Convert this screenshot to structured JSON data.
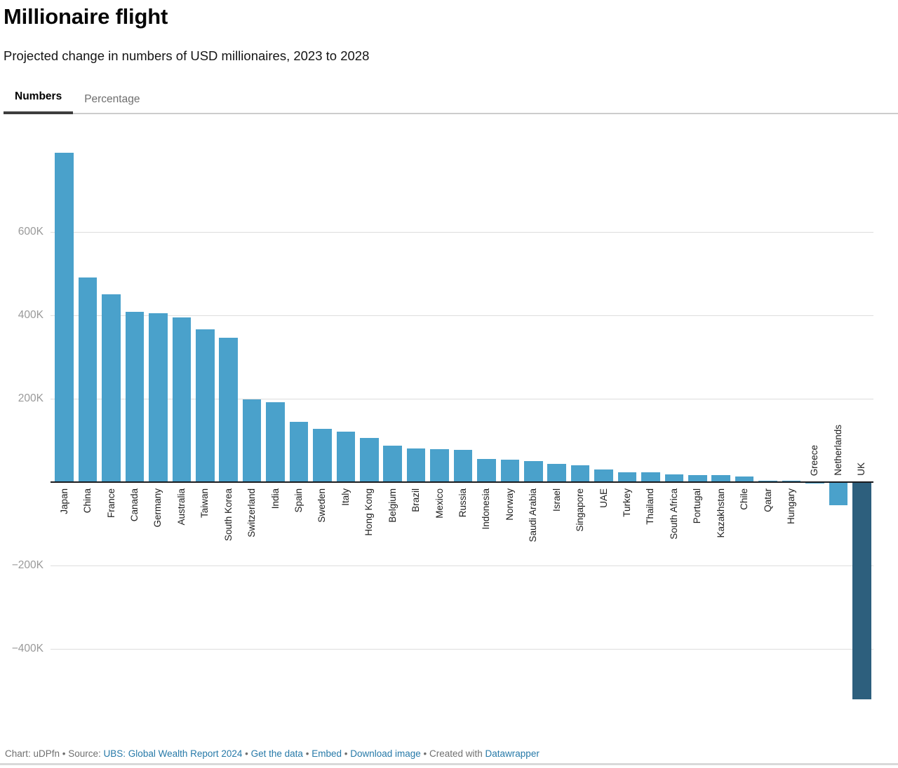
{
  "header": {
    "title": "Millionaire flight",
    "subtitle": "Projected change in numbers of USD millionaires, 2023 to 2028"
  },
  "tabs": [
    {
      "label": "Numbers",
      "active": true
    },
    {
      "label": "Percentage",
      "active": false
    }
  ],
  "chart_data": {
    "type": "bar",
    "title": "Millionaire flight",
    "unit": "thousands of millionaires (K)",
    "xlabel": "",
    "ylabel": "Projected change in number of USD millionaires 2023-2028",
    "ylim": [
      -560,
      800
    ],
    "grid": true,
    "categories": [
      "Japan",
      "China",
      "France",
      "Canada",
      "Germany",
      "Australia",
      "Taiwan",
      "South Korea",
      "Switzerland",
      "India",
      "Spain",
      "Sweden",
      "Italy",
      "Hong Kong",
      "Belgium",
      "Brazil",
      "Mexico",
      "Russia",
      "Indonesia",
      "Norway",
      "Saudi Arabia",
      "Israel",
      "Singapore",
      "UAE",
      "Turkey",
      "Thailand",
      "South Africa",
      "Portugal",
      "Kazakhstan",
      "Chile",
      "Qatar",
      "Hungary",
      "Greece",
      "Netherlands",
      "UK"
    ],
    "values": [
      790,
      490,
      450,
      408,
      405,
      395,
      366,
      346,
      199,
      191,
      145,
      127,
      121,
      106,
      88,
      81,
      79,
      78,
      55,
      53,
      51,
      44,
      40,
      30,
      24,
      23,
      18,
      17,
      16,
      13,
      4,
      3,
      -2,
      -54,
      -519
    ],
    "yticks": [
      {
        "label": "600K",
        "value": 600
      },
      {
        "label": "400K",
        "value": 400
      },
      {
        "label": "200K",
        "value": 200
      },
      {
        "label": "−200K",
        "value": -200
      },
      {
        "label": "−400K",
        "value": -400
      }
    ],
    "colors": {
      "default": "#4aa1cb",
      "UK": "#2d5f7d"
    }
  },
  "footer": {
    "prefix": "Chart: uDPfn • Source: ",
    "source_link": "UBS: Global Wealth Report 2024",
    "sep1": " • ",
    "get_data_link": "Get the data",
    "sep2": " • ",
    "embed_link": "Embed",
    "sep3": "  • ",
    "download_link": "Download image",
    "created_with": " • Created with ",
    "datawrapper_link": "Datawrapper"
  }
}
